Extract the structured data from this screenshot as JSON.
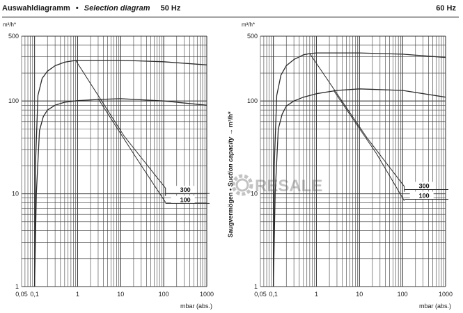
{
  "header": {
    "title_de": "Auswahldiagramm",
    "bullet": "•",
    "title_en": "Selection diagram",
    "freq_left": "50 Hz",
    "freq_right": "60 Hz"
  },
  "y_axis_label": {
    "de": "Saugvermögen",
    "bullet": "•",
    "en": "Suction capacity",
    "arrow": "→",
    "unit": "m³/h*"
  },
  "watermark": {
    "text": "RESALE",
    "icon": "gear-icon"
  },
  "colors": {
    "line": "#2a2a2a",
    "grid": "#3a3a3a"
  },
  "chart_data": [
    {
      "type": "line",
      "title": "50 Hz",
      "xlabel": "mbar (abs.)",
      "ylabel": "m³/h*",
      "xscale": "log",
      "yscale": "log",
      "xlim": [
        0.05,
        1000
      ],
      "ylim": [
        1,
        500
      ],
      "x_ticks": [
        "0,05",
        "0,1",
        "1",
        "10",
        "100",
        "1000"
      ],
      "y_ticks": [
        "1",
        "10",
        "100",
        "500"
      ],
      "grid": true,
      "series": [
        {
          "name": "300",
          "x": [
            0.1,
            0.105,
            0.12,
            0.15,
            0.2,
            0.3,
            0.5,
            0.8,
            1,
            10,
            100,
            1000
          ],
          "y": [
            1,
            20,
            115,
            175,
            210,
            240,
            262,
            272,
            275,
            275,
            265,
            245
          ]
        },
        {
          "name": "100",
          "x": [
            0.1,
            0.11,
            0.13,
            0.16,
            0.2,
            0.3,
            0.5,
            1,
            3,
            10,
            100,
            1000
          ],
          "y": [
            1,
            10,
            48,
            68,
            80,
            90,
            97,
            101,
            104,
            106,
            100,
            90
          ]
        }
      ],
      "selection_lines": [
        {
          "x": [
            0.9,
            12,
            110,
            110
          ],
          "y": [
            275,
            42,
            11.5,
            9.5
          ]
        },
        {
          "x": [
            3,
            25,
            110,
            110
          ],
          "y": [
            106,
            23,
            8.1,
            8.1
          ]
        }
      ],
      "labels": [
        {
          "text": "300",
          "x": 420,
          "y": 10.6
        },
        {
          "text": "100",
          "x": 420,
          "y": 8.3
        }
      ]
    },
    {
      "type": "line",
      "title": "60 Hz",
      "xlabel": "mbar (abs.)",
      "ylabel": "m³/h*",
      "xscale": "log",
      "yscale": "log",
      "xlim": [
        0.05,
        1000
      ],
      "ylim": [
        1,
        500
      ],
      "x_ticks": [
        "0,05",
        "0,1",
        "1",
        "10",
        "100",
        "1000"
      ],
      "y_ticks": [
        "1",
        "10",
        "100",
        "500"
      ],
      "grid": true,
      "series": [
        {
          "name": "300",
          "x": [
            0.1,
            0.105,
            0.12,
            0.15,
            0.2,
            0.3,
            0.5,
            0.7,
            1,
            10,
            100,
            1000
          ],
          "y": [
            1,
            20,
            115,
            190,
            240,
            280,
            315,
            325,
            330,
            330,
            320,
            295
          ]
        },
        {
          "name": "100",
          "x": [
            0.1,
            0.11,
            0.13,
            0.16,
            0.2,
            0.3,
            0.5,
            1,
            3,
            10,
            100,
            1000
          ],
          "y": [
            1,
            10,
            50,
            72,
            88,
            100,
            110,
            120,
            130,
            135,
            130,
            110
          ]
        }
      ],
      "selection_lines": [
        {
          "x": [
            0.7,
            15,
            110,
            110
          ],
          "y": [
            325,
            40,
            12,
            10.5
          ]
        },
        {
          "x": [
            2.5,
            25,
            110,
            110
          ],
          "y": [
            130,
            27,
            8.4,
            8.4
          ]
        }
      ],
      "labels": [
        {
          "text": "300",
          "x": 420,
          "y": 11.7
        },
        {
          "text": "100",
          "x": 420,
          "y": 9.2
        }
      ]
    }
  ]
}
